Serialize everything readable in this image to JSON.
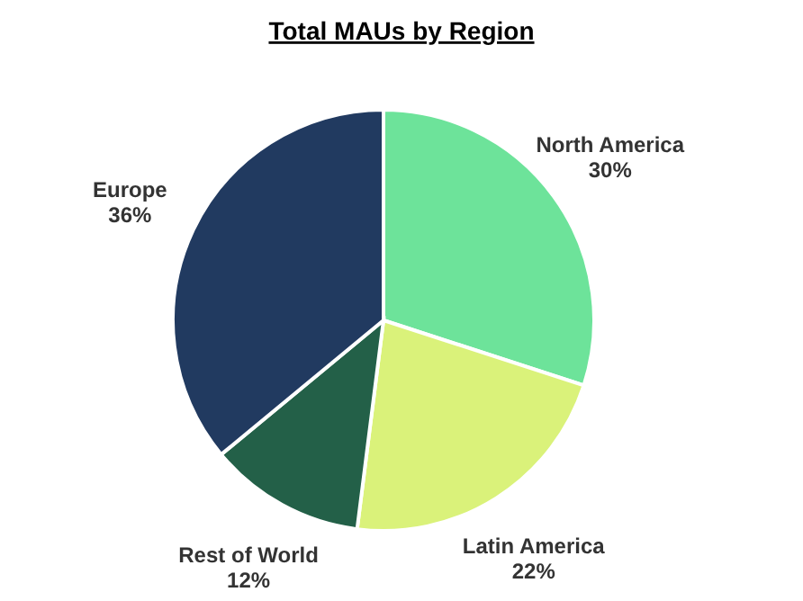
{
  "chart_data": {
    "type": "pie",
    "title": "Total MAUs by Region",
    "categories": [
      "North America",
      "Latin America",
      "Rest of World",
      "Europe"
    ],
    "values": [
      30,
      22,
      12,
      36
    ],
    "value_labels": [
      "30%",
      "22%",
      "12%",
      "36%"
    ],
    "colors": [
      "#6de39a",
      "#daf27a",
      "#236048",
      "#213a60"
    ],
    "legend": false
  }
}
